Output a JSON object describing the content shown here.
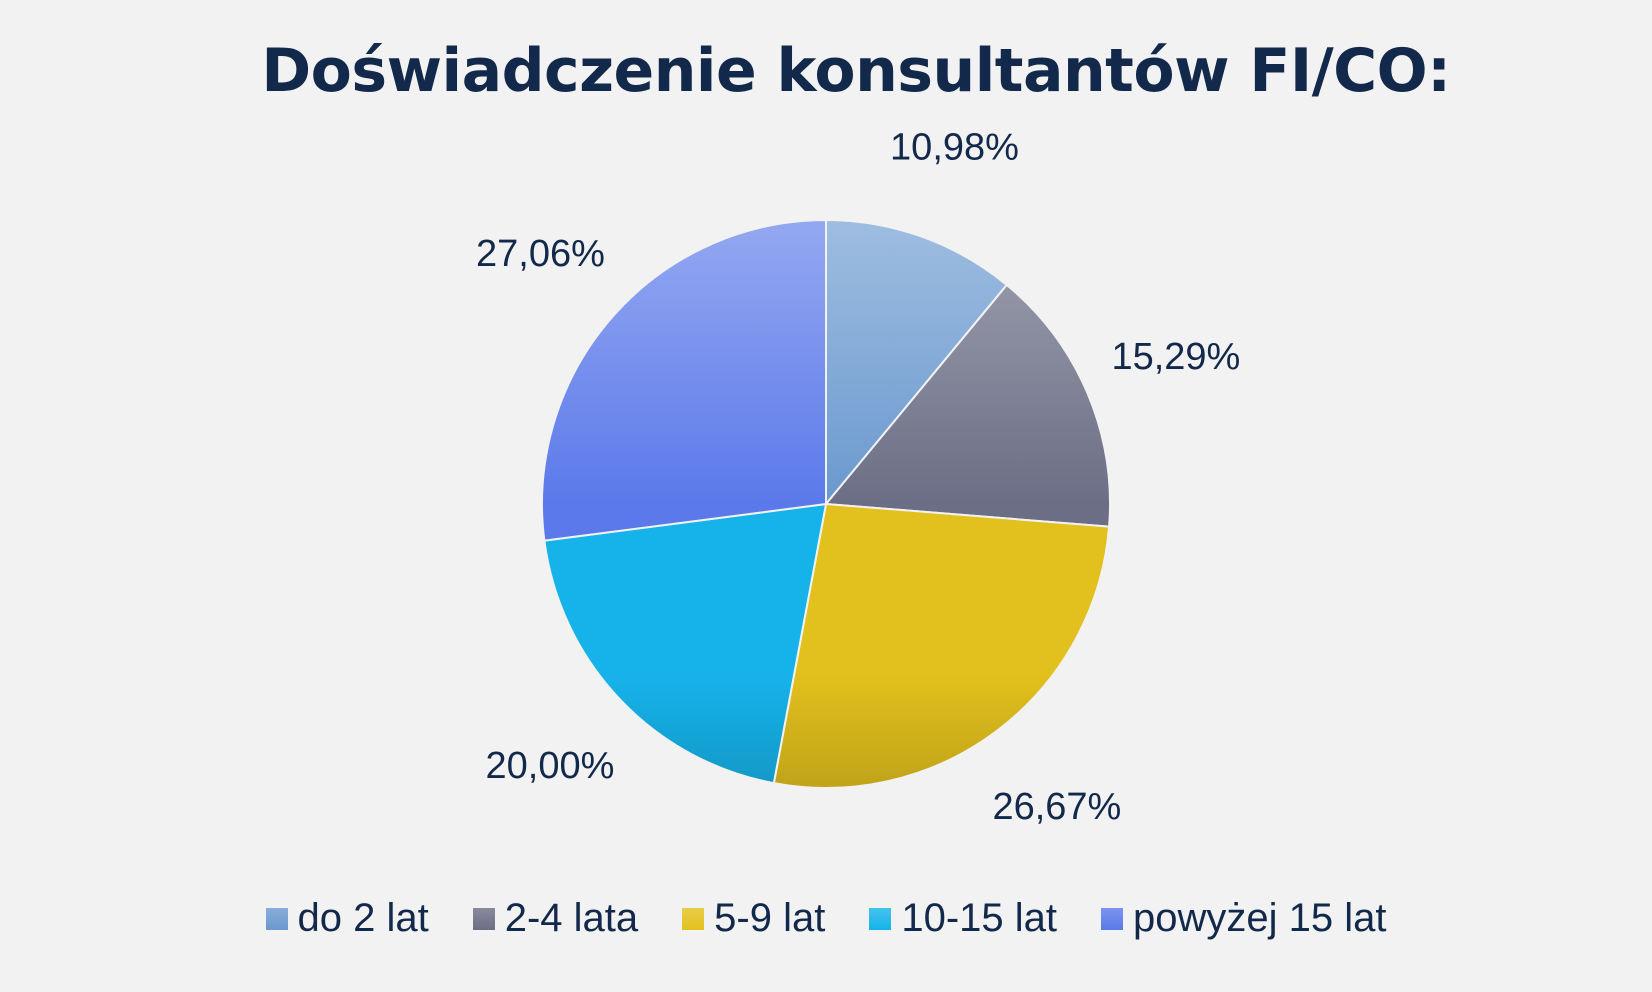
{
  "chart_data": {
    "type": "pie",
    "title": "Doświadczenie konsultantów FI/CO:",
    "categories": [
      "do 2 lat",
      "2-4 lata",
      "5-9 lat",
      "10-15 lat",
      "powyżej 15 lat"
    ],
    "values": [
      10.98,
      15.29,
      26.67,
      20.0,
      27.06
    ],
    "value_labels": [
      "10,98%",
      "15,29%",
      "26,67%",
      "20,00%",
      "27,06%"
    ],
    "colors": [
      "#6a99cf",
      "#6b6e85",
      "#e2c01d",
      "#16b3ea",
      "#5b79ea"
    ],
    "legend_position": "bottom"
  }
}
